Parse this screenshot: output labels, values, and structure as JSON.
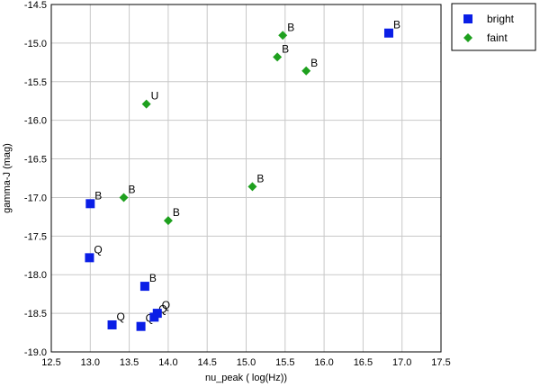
{
  "chart_data": {
    "type": "scatter",
    "xlabel": "nu_peak ( log(Hz))",
    "ylabel": "gamma-J (mag)",
    "xlim": [
      12.5,
      17.5
    ],
    "ylim": [
      -19.0,
      -14.5
    ],
    "xticks": [
      12.5,
      13.0,
      13.5,
      14.0,
      14.5,
      15.0,
      15.5,
      16.0,
      16.5,
      17.0,
      17.5
    ],
    "yticks": [
      -14.5,
      -15.0,
      -15.5,
      -16.0,
      -16.5,
      -17.0,
      -17.5,
      -18.0,
      -18.5,
      -19.0
    ],
    "xtick_labels": [
      "12.5",
      "13.0",
      "13.5",
      "14.0",
      "14.5",
      "15.0",
      "15.5",
      "16.0",
      "16.5",
      "17.0",
      "17.5"
    ],
    "ytick_labels": [
      "-14.5",
      "-15.0",
      "-15.5",
      "-16.0",
      "-16.5",
      "-17.0",
      "-17.5",
      "-18.0",
      "-18.5",
      "-19.0"
    ],
    "grid": true,
    "legend_position": "outside-top-right",
    "series": [
      {
        "name": "bright",
        "marker": "square",
        "color": "#0a1ee6",
        "points": [
          {
            "x": 16.83,
            "y": -14.87,
            "label": "B"
          },
          {
            "x": 13.0,
            "y": -17.08,
            "label": "B"
          },
          {
            "x": 12.99,
            "y": -17.78,
            "label": "Q"
          },
          {
            "x": 13.7,
            "y": -18.15,
            "label": "B"
          },
          {
            "x": 13.28,
            "y": -18.65,
            "label": "Q"
          },
          {
            "x": 13.65,
            "y": -18.67,
            "label": "Q"
          },
          {
            "x": 13.82,
            "y": -18.55,
            "label": "Q"
          },
          {
            "x": 13.86,
            "y": -18.5,
            "label": "Q"
          }
        ]
      },
      {
        "name": "faint",
        "marker": "diamond",
        "color": "#1ea01e",
        "points": [
          {
            "x": 15.47,
            "y": -14.9,
            "label": "B"
          },
          {
            "x": 15.4,
            "y": -15.18,
            "label": "B"
          },
          {
            "x": 15.77,
            "y": -15.36,
            "label": "B"
          },
          {
            "x": 13.72,
            "y": -15.79,
            "label": "U"
          },
          {
            "x": 15.08,
            "y": -16.86,
            "label": "B"
          },
          {
            "x": 13.43,
            "y": -17.0,
            "label": "B"
          },
          {
            "x": 14.0,
            "y": -17.3,
            "label": "B"
          }
        ]
      }
    ]
  }
}
